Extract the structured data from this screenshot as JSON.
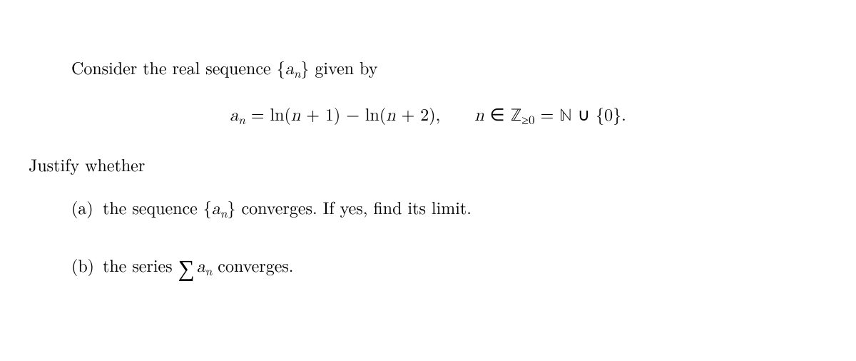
{
  "background_color": "#ffffff",
  "text_color": "#000000",
  "font_family_serif": "Latin Modern Roman, Computer Modern, Georgia, Times New Roman, serif",
  "font_size_pt": 18,
  "intro_prefix": "Consider the real sequence ",
  "brace_open": "{",
  "seq_var": "a",
  "seq_sub": "n",
  "brace_close": "}",
  "intro_suffix": " given by",
  "eq_lhs_var": "a",
  "eq_lhs_sub": "n",
  "eq_eq": " = ",
  "eq_ln1": "ln(",
  "eq_n1": "n",
  "eq_plus1": " + 1) − ln(",
  "eq_n2": "n",
  "eq_plus2": " + 2),",
  "eq_space": "    ",
  "eq_n3": "n",
  "eq_in": " ∈ ",
  "eq_Z": "ℤ",
  "eq_geq0": "≥0",
  "eq_eq2": " = ",
  "eq_N": "ℕ",
  "eq_cup": " ∪ ",
  "eq_zero_set": "{0}.",
  "justify": "Justify whether",
  "item_a_label": "(a)",
  "item_a_prefix": "the sequence ",
  "item_a_suffix": " converges. If yes, find its limit.",
  "item_b_label": "(b)",
  "item_b_prefix": "the series ",
  "sum_symbol": "∑",
  "item_b_var": "a",
  "item_b_sub": "n",
  "item_b_suffix": " converges."
}
